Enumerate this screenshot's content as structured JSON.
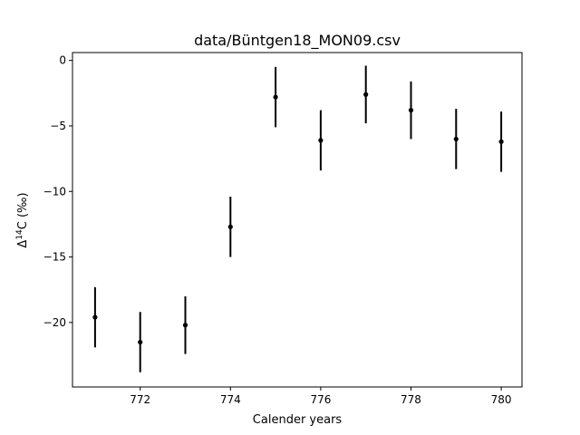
{
  "chart_data": {
    "type": "scatter",
    "title": "data/Büntgen18_MON09.csv",
    "xlabel": "Calender years",
    "ylabel_main": "Δ",
    "ylabel_sup": "14",
    "ylabel_rest": "C (‰)",
    "xlim": [
      770.5,
      780.46
    ],
    "ylim": [
      -24.92,
      0.6
    ],
    "xticks": [
      772,
      774,
      776,
      778,
      780
    ],
    "yticks": [
      0,
      -5,
      -10,
      -15,
      -20
    ],
    "x": [
      771,
      772,
      773,
      774,
      775,
      776,
      777,
      778,
      779,
      780
    ],
    "y": [
      -19.6,
      -21.5,
      -20.2,
      -12.7,
      -2.8,
      -6.1,
      -2.6,
      -3.8,
      -6.0,
      -6.2
    ],
    "yerr": [
      2.3,
      2.3,
      2.2,
      2.3,
      2.3,
      2.3,
      2.2,
      2.2,
      2.3,
      2.3
    ],
    "grid": false,
    "colors": {
      "marker": "#000000",
      "axes": "#000000",
      "background": "#ffffff"
    }
  }
}
